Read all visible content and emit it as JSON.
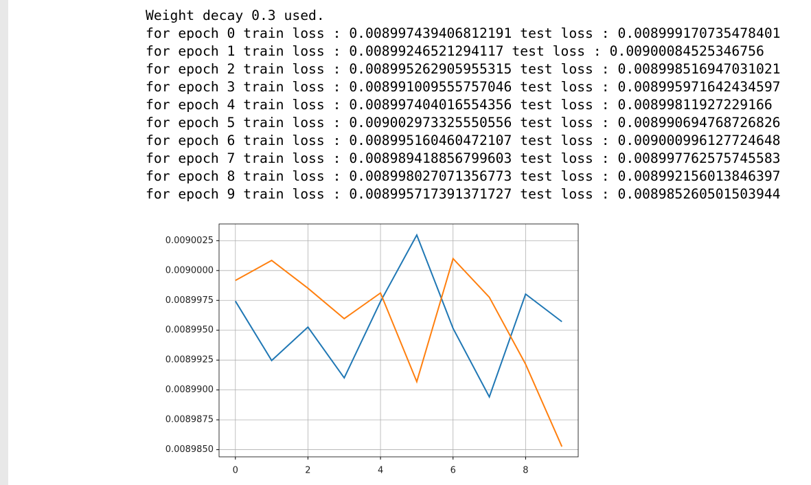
{
  "log_lines": [
    "Weight decay 0.3 used.",
    "for epoch 0 train loss : 0.008997439406812191 test loss : 0.008999170735478401",
    "for epoch 1 train loss : 0.00899246521294117 test loss : 0.00900084525346756",
    "for epoch 2 train loss : 0.008995262905955315 test loss : 0.008998516947031021",
    "for epoch 3 train loss : 0.008991009555757046 test loss : 0.008995971642434597",
    "for epoch 4 train loss : 0.008997404016554356 test loss : 0.00899811927229166",
    "for epoch 5 train loss : 0.009002973325550556 test loss : 0.008990694768726826",
    "for epoch 6 train loss : 0.008995160460472107 test loss : 0.009000996127724648",
    "for epoch 7 train loss : 0.008989418856799603 test loss : 0.008997762575745583",
    "for epoch 8 train loss : 0.008998027071356773 test loss : 0.008992156013846397",
    "for epoch 9 train loss : 0.008995717391371727 test loss : 0.008985260501503944"
  ],
  "chart_data": {
    "type": "line",
    "x": [
      0,
      1,
      2,
      3,
      4,
      5,
      6,
      7,
      8,
      9
    ],
    "series": [
      {
        "color": "#1f77b4",
        "values": [
          0.008997439406812191,
          0.00899246521294117,
          0.008995262905955315,
          0.008991009555757046,
          0.008997404016554356,
          0.009002973325550556,
          0.008995160460472107,
          0.008989418856799603,
          0.008998027071356773,
          0.008995717391371727
        ]
      },
      {
        "color": "#ff7f0e",
        "values": [
          0.008999170735478401,
          0.00900084525346756,
          0.008998516947031021,
          0.008995971642434597,
          0.00899811927229166,
          0.008990694768726826,
          0.009000996127724648,
          0.008997762575745583,
          0.008992156013846397,
          0.008985260501503944
        ]
      }
    ],
    "xlim": [
      -0.45,
      9.45
    ],
    "xticks": [
      0,
      2,
      4,
      6,
      8
    ],
    "ylim": [
      0.0089844,
      0.0090039
    ],
    "yticks": [
      {
        "value": 0.008985,
        "label": "0.0089850"
      },
      0.0089875,
      {
        "value": 0.00899,
        "label": "0.0089900"
      },
      0.0089925,
      {
        "value": 0.008995,
        "label": "0.0089950"
      },
      0.0089975,
      {
        "value": 0.009,
        "label": "0.0090000"
      },
      0.0090025
    ],
    "grid": true
  }
}
